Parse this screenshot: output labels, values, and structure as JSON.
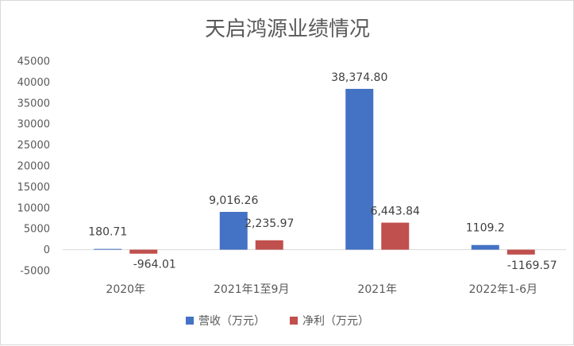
{
  "chart_data": {
    "type": "bar",
    "title": "天启鸿源业绩情况",
    "categories": [
      "2020年",
      "2021年1至9月",
      "2021年",
      "2022年1-6月"
    ],
    "series": [
      {
        "name": "营收（万元）",
        "color": "#4472c4",
        "values": [
          180.71,
          9016.26,
          38374.8,
          1109.2
        ],
        "labels": [
          "180.71",
          "9,016.26",
          "38,374.80",
          "1109.2"
        ]
      },
      {
        "name": "净利（万元）",
        "color": "#c0504d",
        "values": [
          -964.01,
          2235.97,
          6443.84,
          -1169.57
        ],
        "labels": [
          "-964.01",
          "2,235.97",
          "6,443.84",
          "-1169.57"
        ]
      }
    ],
    "ylim": [
      -5000,
      45000
    ],
    "yticks": [
      45000,
      40000,
      35000,
      30000,
      25000,
      20000,
      15000,
      10000,
      5000,
      0,
      -5000
    ],
    "grid": false,
    "legend": "bottom"
  }
}
